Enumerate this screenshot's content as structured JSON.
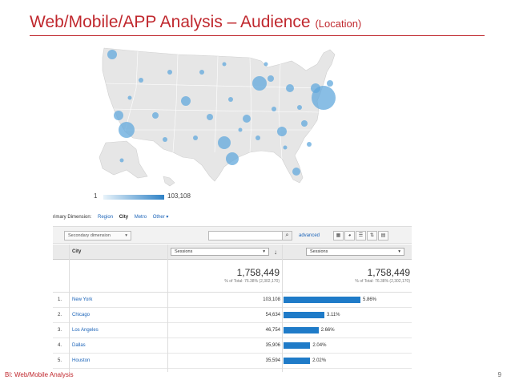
{
  "slide": {
    "title": "Web/Mobile/APP Analysis – Audience",
    "subtitle": "(Location)",
    "footer": "BI: Web/Mobile Analysis",
    "page": "9"
  },
  "map": {
    "legend_min": "1",
    "legend_max": "103,108",
    "colors": {
      "bubble": "#62a8dc",
      "land": "#e6e6e6",
      "border": "#ffffff"
    }
  },
  "ga": {
    "dim_label": "rimary Dimension:",
    "dim_region": "Region",
    "dim_city": "City",
    "dim_metro": "Metro",
    "dim_other": "Other ▾",
    "secondary_dimension": "Secondary dimension",
    "search_value": "",
    "advanced": "advanced",
    "col_city": "City",
    "col_sessions_1": "Sessions",
    "col_sessions_2": "Sessions",
    "total_1": "1,758,449",
    "total_1_pct": "% of Total: 76.38% (2,302,170)",
    "total_2": "1,758,449",
    "total_2_pct": "% of Total: 76.38% (2,302,170)",
    "rows": [
      {
        "idx": "1.",
        "city": "New York",
        "sessions": "103,108",
        "pct": "5.86%",
        "share": 5.86
      },
      {
        "idx": "2.",
        "city": "Chicago",
        "sessions": "54,634",
        "pct": "3.11%",
        "share": 3.11
      },
      {
        "idx": "3.",
        "city": "Los Angeles",
        "sessions": "46,754",
        "pct": "2.66%",
        "share": 2.66
      },
      {
        "idx": "4.",
        "city": "Dallas",
        "sessions": "35,906",
        "pct": "2.04%",
        "share": 2.04
      },
      {
        "idx": "5.",
        "city": "Houston",
        "sessions": "35,594",
        "pct": "2.02%",
        "share": 2.02
      }
    ]
  }
}
